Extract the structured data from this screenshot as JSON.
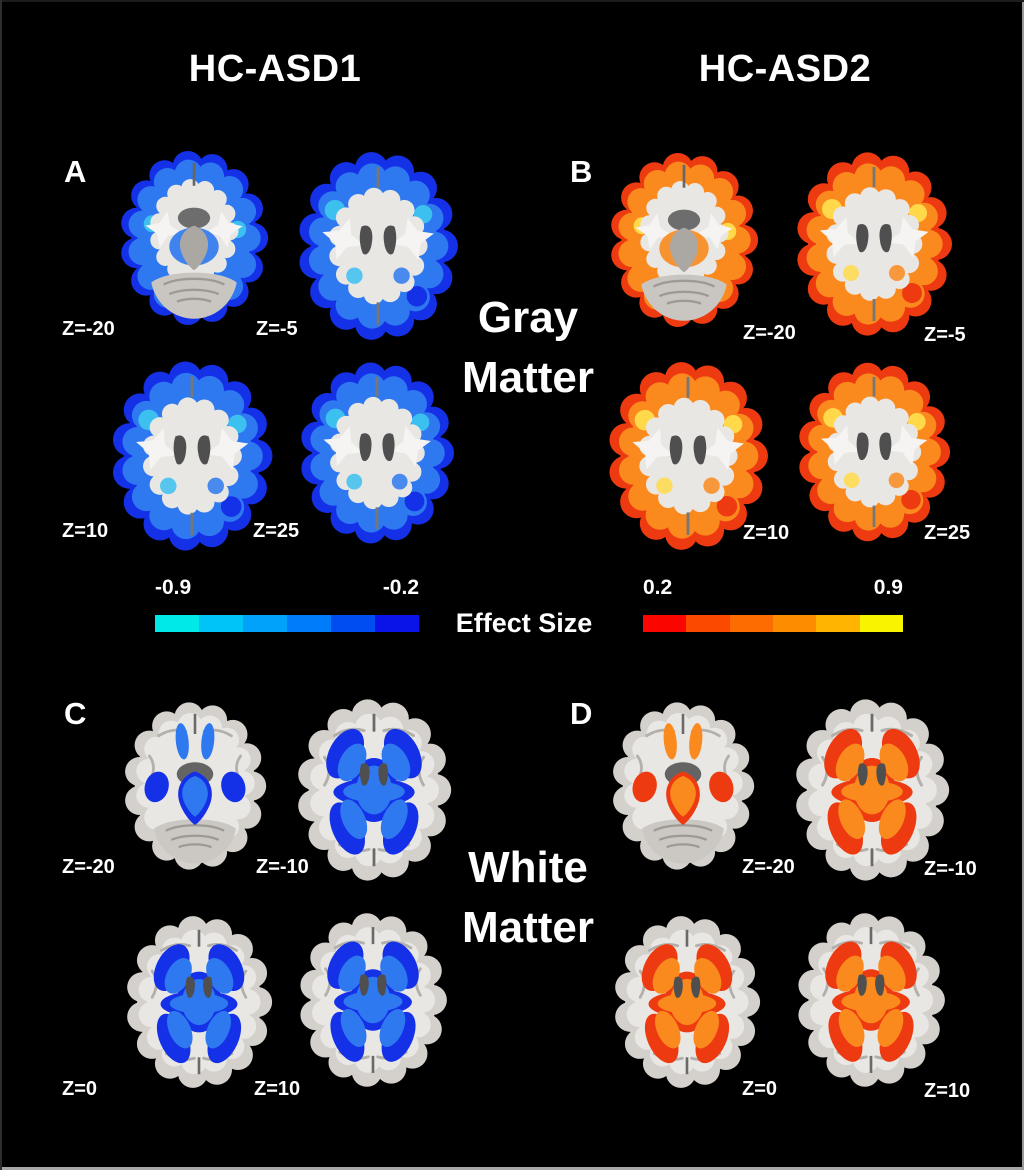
{
  "figure": {
    "columns": [
      {
        "title": "HC-ASD1"
      },
      {
        "title": "HC-ASD2"
      }
    ],
    "rows": [
      {
        "line1": "Gray",
        "line2": "Matter"
      },
      {
        "line1": "White",
        "line2": "Matter"
      }
    ],
    "effect_size_label": "Effect Size",
    "panels": {
      "A": {
        "letter": "A",
        "slices": [
          {
            "z": "Z=-20"
          },
          {
            "z": "Z=-5"
          },
          {
            "z": "Z=10"
          },
          {
            "z": "Z=25"
          }
        ]
      },
      "B": {
        "letter": "B",
        "slices": [
          {
            "z": "Z=-20"
          },
          {
            "z": "Z=-5"
          },
          {
            "z": "Z=10"
          },
          {
            "z": "Z=25"
          }
        ]
      },
      "C": {
        "letter": "C",
        "slices": [
          {
            "z": "Z=-20"
          },
          {
            "z": "Z=-10"
          },
          {
            "z": "Z=0"
          },
          {
            "z": "Z=10"
          }
        ]
      },
      "D": {
        "letter": "D",
        "slices": [
          {
            "z": "Z=-20"
          },
          {
            "z": "Z=-10"
          },
          {
            "z": "Z=0"
          },
          {
            "z": "Z=10"
          }
        ]
      }
    },
    "colorbars": {
      "negative": {
        "min": "-0.9",
        "max": "-0.2",
        "segments": [
          "#00e9e9",
          "#00c4f5",
          "#00a2fa",
          "#007bfa",
          "#004df2",
          "#0a14e8"
        ]
      },
      "positive": {
        "min": "0.2",
        "max": "0.9",
        "segments": [
          "#fa0500",
          "#fb4a00",
          "#fc6c00",
          "#fd8d00",
          "#feb400",
          "#f8f400"
        ]
      }
    },
    "palette": {
      "cool_deep": "#1531e8",
      "cool_mid": "#2e78f0",
      "cool_light": "#3cc0f0",
      "warm_deep": "#ee3a10",
      "warm_mid": "#fa8a1e",
      "warm_light": "#ffd94a",
      "cortex": "#d4d1cd",
      "cortex_inner": "#e9e7e4",
      "structure_dark": "#4f4f4f"
    }
  }
}
